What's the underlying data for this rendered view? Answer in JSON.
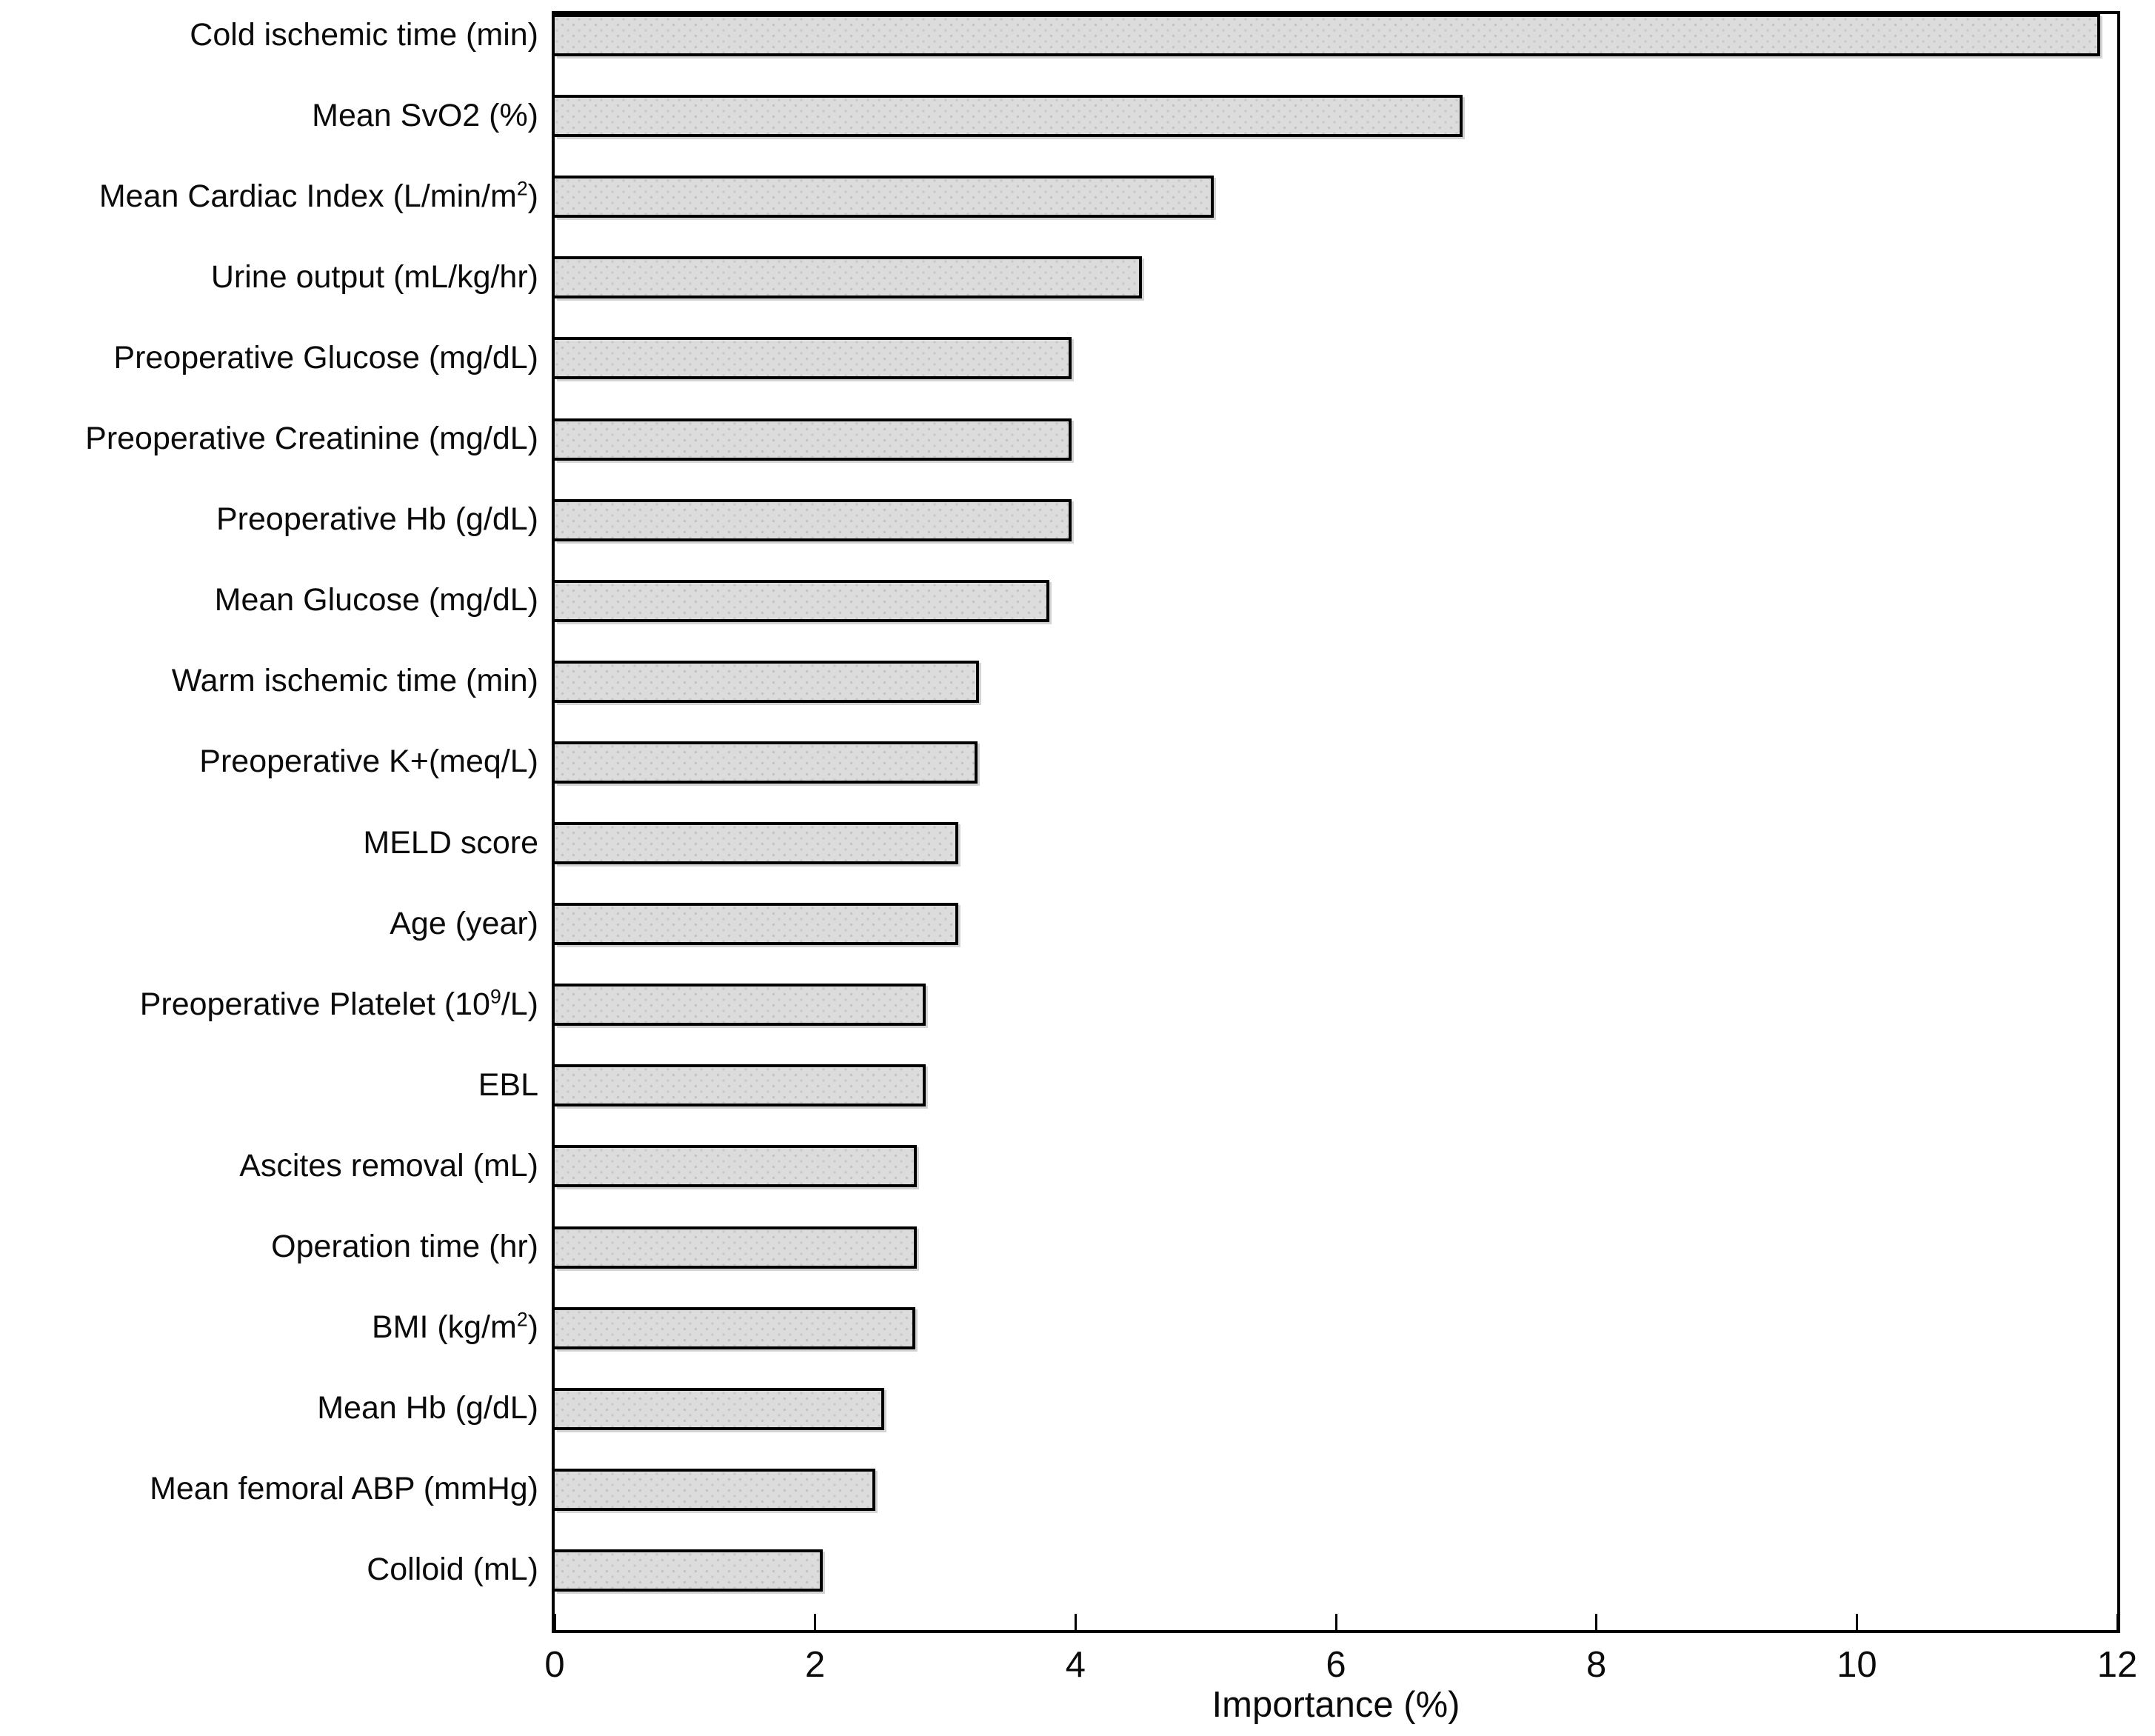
{
  "chart_data": {
    "type": "bar",
    "orientation": "horizontal",
    "title": "",
    "xlabel": "Importance (%)",
    "ylabel": "",
    "xlim": [
      0,
      12
    ],
    "xticks": [
      0,
      2,
      4,
      6,
      8,
      10,
      12
    ],
    "grid": false,
    "legend": "none",
    "bar_fill_color": "#dcdcdc",
    "bar_dot_pattern_color": "#c3c3c3",
    "bar_edge_color": "#000000",
    "categories": [
      "Cold ischemic time (min)",
      "Mean SvO2 (%)",
      "Mean Cardiac Index (L/min/m^2)",
      "Urine output (mL/kg/hr)",
      "Preoperative Glucose (mg/dL)",
      "Preoperative Creatinine (mg/dL)",
      "Preoperative Hb (g/dL)",
      "Mean Glucose (mg/dL)",
      "Warm ischemic time (min)",
      "Preoperative K+(meq/L)",
      "MELD score",
      "Age (year)",
      "Preoperative Platelet (10^9/L)",
      "EBL",
      "Ascites removal (mL)",
      "Operation time (hr)",
      "BMI (kg/m^2)",
      "Mean Hb (g/dL)",
      "Mean femoral ABP (mmHg)",
      "Colloid (mL)"
    ],
    "values": [
      11.87,
      6.97,
      5.06,
      4.51,
      3.97,
      3.97,
      3.97,
      3.8,
      3.26,
      3.25,
      3.1,
      3.1,
      2.85,
      2.85,
      2.78,
      2.78,
      2.77,
      2.53,
      2.46,
      2.06
    ]
  }
}
